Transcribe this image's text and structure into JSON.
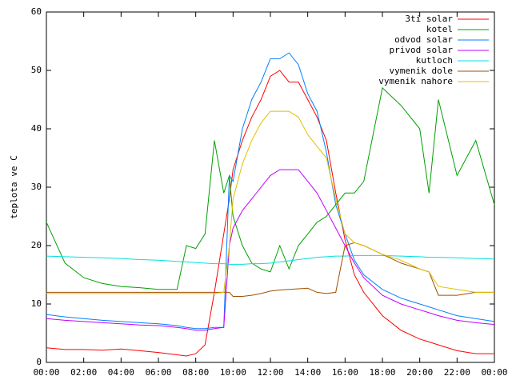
{
  "chart_data": {
    "type": "line",
    "ylabel": "teplota ve C",
    "x": [
      0,
      1,
      2,
      3,
      4,
      5,
      6,
      7,
      7.5,
      8,
      8.5,
      9,
      9.5,
      9.8,
      10,
      10.5,
      11,
      11.5,
      12,
      12.5,
      13,
      13.5,
      14,
      14.5,
      15,
      15.5,
      16,
      16.5,
      17,
      18,
      19,
      20,
      20.5,
      21,
      22,
      23,
      24
    ],
    "xlim": [
      0,
      24
    ],
    "xticks": [
      {
        "value": 0,
        "label": "00:00"
      },
      {
        "value": 2,
        "label": "02:00"
      },
      {
        "value": 4,
        "label": "04:00"
      },
      {
        "value": 6,
        "label": "06:00"
      },
      {
        "value": 8,
        "label": "08:00"
      },
      {
        "value": 10,
        "label": "10:00"
      },
      {
        "value": 12,
        "label": "12:00"
      },
      {
        "value": 14,
        "label": "14:00"
      },
      {
        "value": 16,
        "label": "16:00"
      },
      {
        "value": 18,
        "label": "18:00"
      },
      {
        "value": 20,
        "label": "20:00"
      },
      {
        "value": 22,
        "label": "22:00"
      },
      {
        "value": 24,
        "label": "00:00"
      }
    ],
    "ylim": [
      0,
      60
    ],
    "yticks": [
      0,
      10,
      20,
      30,
      40,
      50,
      60
    ],
    "legend": "upper right",
    "series": [
      {
        "name": "3ti solar",
        "color": "#ff0000",
        "values": [
          2.5,
          2.2,
          2.2,
          2.1,
          2.3,
          2,
          1.7,
          1.3,
          1.1,
          1.5,
          3,
          12,
          22,
          28,
          33,
          38,
          42,
          45,
          49,
          50,
          48,
          48,
          45,
          42,
          38,
          29,
          21,
          15,
          12,
          8,
          5.5,
          4,
          3.5,
          3,
          2,
          1.5,
          1.5
        ]
      },
      {
        "name": "kotel",
        "color": "#00a000",
        "values": [
          24,
          17,
          14.5,
          13.5,
          13,
          12.8,
          12.5,
          12.5,
          20,
          19.5,
          22,
          38,
          29,
          32,
          25,
          20,
          17,
          16,
          15.5,
          20,
          16,
          20,
          22,
          24,
          25,
          27,
          29,
          29,
          31,
          47,
          44,
          40,
          29,
          45,
          32,
          38,
          27
        ]
      },
      {
        "name": "odvod solar",
        "color": "#0080ff",
        "values": [
          8.2,
          7.8,
          7.5,
          7.2,
          7,
          6.8,
          6.6,
          6.3,
          6,
          5.8,
          5.8,
          6,
          6,
          32,
          31,
          40,
          45,
          48,
          52,
          52,
          53,
          51,
          46,
          43,
          36,
          27,
          22,
          17.5,
          15,
          12.5,
          11,
          10,
          9.5,
          9,
          8,
          7.5,
          7
        ]
      },
      {
        "name": "privod solar",
        "color": "#c000ff",
        "values": [
          7.5,
          7.2,
          7,
          6.8,
          6.6,
          6.4,
          6.3,
          6,
          5.8,
          5.5,
          5.5,
          5.8,
          6,
          20,
          23,
          26,
          28,
          30,
          32,
          33,
          33,
          33,
          31,
          29,
          26,
          23,
          20,
          17,
          14.5,
          11.5,
          10,
          9,
          8.5,
          8,
          7.2,
          6.8,
          6.5
        ]
      },
      {
        "name": "kutloch",
        "color": "#00e0e0",
        "values": [
          18.2,
          18.1,
          18,
          17.9,
          17.8,
          17.6,
          17.5,
          17.3,
          17.2,
          17.1,
          17,
          16.9,
          16.9,
          16.8,
          16.8,
          16.8,
          16.9,
          16.9,
          17,
          17.2,
          17.4,
          17.6,
          17.8,
          18,
          18.1,
          18.2,
          18.2,
          18.3,
          18.3,
          18.3,
          18.2,
          18.1,
          18,
          18,
          17.9,
          17.8,
          17.7
        ]
      },
      {
        "name": "vymenik dole",
        "color": "#a05000",
        "values": [
          12,
          12,
          12,
          12,
          12,
          12,
          12,
          12,
          12,
          12,
          12,
          12,
          12,
          12,
          11.3,
          11.3,
          11.5,
          11.8,
          12.2,
          12.4,
          12.5,
          12.6,
          12.7,
          12,
          11.8,
          12,
          20,
          20.5,
          20,
          18.5,
          17,
          16,
          15.5,
          11.5,
          11.5,
          12,
          12
        ]
      },
      {
        "name": "vymenik nahore",
        "color": "#e0c000",
        "values": [
          11.8,
          11.8,
          11.8,
          11.8,
          11.8,
          11.8,
          11.8,
          11.8,
          11.8,
          11.8,
          11.8,
          11.8,
          12,
          20,
          28,
          34,
          38,
          41,
          43,
          43,
          43,
          42,
          39,
          37,
          35,
          28,
          22,
          20.5,
          20,
          18.5,
          17.5,
          16,
          15.5,
          13,
          12.5,
          12,
          12
        ]
      }
    ]
  }
}
